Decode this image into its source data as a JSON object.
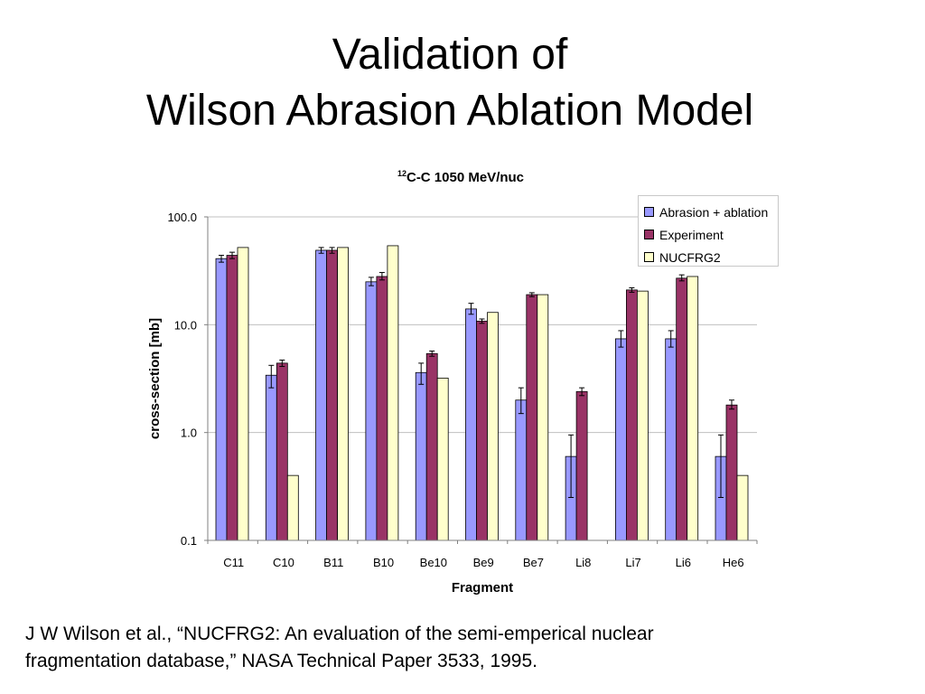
{
  "slide": {
    "title_line1": "Validation of",
    "title_line2": "Wilson Abrasion Ablation Model",
    "citation_line1": "J W Wilson et al., “NUCFRG2: An evaluation of the semi-emperical nuclear",
    "citation_line2": "fragmentation database,” NASA Technical Paper 3533, 1995."
  },
  "chart_data": {
    "type": "bar",
    "title_sup": "12",
    "title": "C-C 1050 MeV/nuc",
    "xlabel": "Fragment",
    "ylabel": "cross-section [mb]",
    "yscale": "log",
    "ylim": [
      0.1,
      100
    ],
    "yticks": [
      "100.0",
      "10.0",
      "1.0",
      "0.1"
    ],
    "ytick_values": [
      100,
      10,
      1,
      0.1
    ],
    "grid": "horizontal",
    "legend_position": "top-right",
    "categories": [
      "C11",
      "C10",
      "B11",
      "B10",
      "Be10",
      "Be9",
      "Be7",
      "Li8",
      "Li7",
      "Li6",
      "He6"
    ],
    "series": [
      {
        "name": "Abrasion + ablation",
        "color": "#9999ff",
        "values": [
          41,
          3.4,
          49,
          25,
          3.6,
          14,
          2.0,
          0.6,
          7.4,
          7.4,
          0.6
        ],
        "error_low": [
          38,
          2.6,
          46,
          23,
          2.8,
          12.5,
          1.5,
          0.25,
          6.2,
          6.2,
          0.25
        ],
        "error_high": [
          44,
          4.2,
          52,
          27.5,
          4.4,
          15.8,
          2.6,
          0.95,
          8.8,
          8.8,
          0.95
        ]
      },
      {
        "name": "Experiment",
        "color": "#993366",
        "values": [
          44,
          4.4,
          49,
          28,
          5.4,
          10.8,
          19,
          2.4,
          21,
          27,
          1.8
        ],
        "error_low": [
          41,
          4.1,
          46,
          26,
          5.1,
          10.3,
          18.2,
          2.2,
          20,
          25.5,
          1.65
        ],
        "error_high": [
          47,
          4.7,
          52,
          30.5,
          5.7,
          11.3,
          19.8,
          2.6,
          22,
          29,
          2.0
        ]
      },
      {
        "name": "NUCFRG2",
        "color": "#ffffcc",
        "values": [
          52,
          0.4,
          52,
          54,
          3.2,
          13,
          19,
          0.1,
          20.5,
          28,
          0.4
        ]
      }
    ]
  }
}
